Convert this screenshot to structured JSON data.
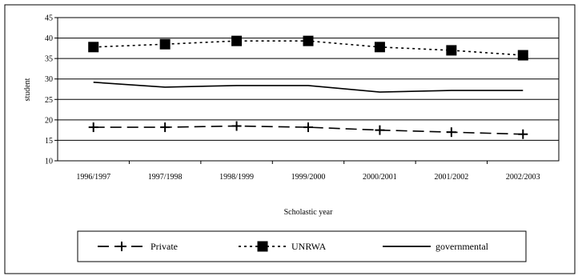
{
  "chart_data": {
    "type": "line",
    "title": "",
    "xlabel": "Scholastic year",
    "ylabel": "student",
    "categories": [
      "1996/1997",
      "1997/1998",
      "1998/1999",
      "1999/2000",
      "2000/2001",
      "2001/2002",
      "2002/2003"
    ],
    "ylim": [
      10,
      45
    ],
    "yticks": [
      10,
      15,
      20,
      25,
      30,
      35,
      40,
      45
    ],
    "grid": "horizontal",
    "legend_position": "bottom",
    "series": [
      {
        "name": "Private",
        "style": "dashed-plus",
        "color": "#000000",
        "values": [
          18.2,
          18.2,
          18.5,
          18.2,
          17.5,
          17.0,
          16.5
        ]
      },
      {
        "name": "UNRWA",
        "style": "dotted-square",
        "color": "#000000",
        "values": [
          37.8,
          38.5,
          39.3,
          39.3,
          37.8,
          37.0,
          35.8
        ]
      },
      {
        "name": "governmental",
        "style": "solid",
        "color": "#000000",
        "values": [
          29.2,
          28.0,
          28.4,
          28.4,
          26.8,
          27.2,
          27.2
        ]
      }
    ]
  }
}
